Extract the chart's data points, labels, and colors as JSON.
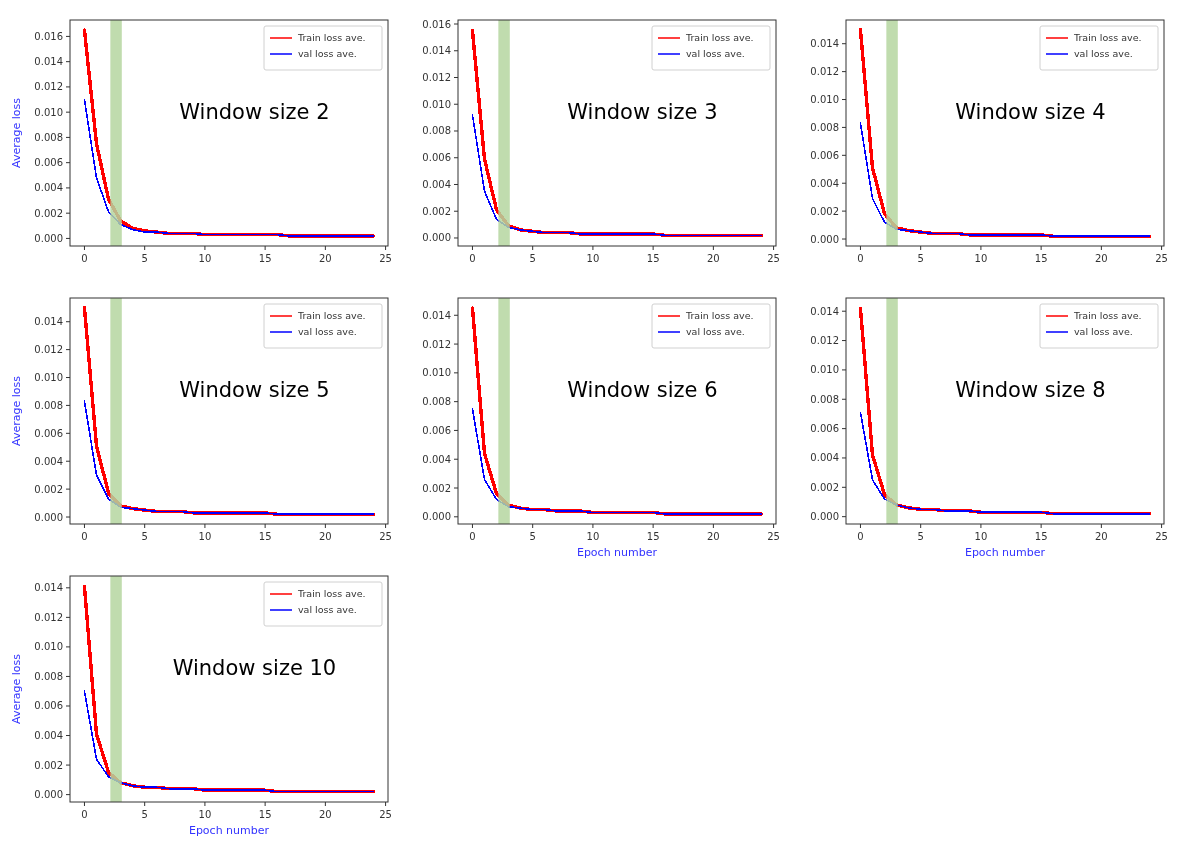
{
  "chart_data": [
    {
      "type": "line",
      "annotations": [
        "Window size 2"
      ],
      "ylabel": "Average loss",
      "x": [
        0,
        1,
        2,
        3,
        4,
        5,
        6,
        7,
        8,
        9,
        10,
        11,
        12,
        13,
        14,
        15,
        16,
        17,
        18,
        19,
        20,
        21,
        22,
        23,
        24
      ],
      "xlim": [
        -1.2,
        25.2
      ],
      "ylim": [
        -0.0006,
        0.0173
      ],
      "xticks": [
        0,
        5,
        10,
        15,
        20,
        25
      ],
      "yticks": [
        {
          "value": 0,
          "label": "0.000"
        },
        {
          "value": 0.002,
          "label": "0.002"
        },
        {
          "value": 0.004,
          "label": "0.004"
        },
        {
          "value": 0.006,
          "label": "0.006"
        },
        {
          "value": 0.008,
          "label": "0.008"
        },
        {
          "value": 0.01,
          "label": "0.010"
        },
        {
          "value": 0.012,
          "label": "0.012"
        },
        {
          "value": 0.014,
          "label": "0.014"
        },
        {
          "value": 0.016,
          "label": "0.016"
        }
      ],
      "bands": [
        {
          "axis": "x",
          "from": 2.15,
          "to": 3.1,
          "color": "#b5d6a0"
        }
      ],
      "legend": "top right",
      "series": [
        {
          "name": "Train loss ave.",
          "color": "#ff0000",
          "values": [
            0.0165,
            0.0075,
            0.0031,
            0.0014,
            0.0008,
            0.0006,
            0.0005,
            0.0004,
            0.0004,
            0.0004,
            0.0003,
            0.0003,
            0.0003,
            0.0003,
            0.0003,
            0.0003,
            0.0003,
            0.0002,
            0.0002,
            0.0002,
            0.0002,
            0.0002,
            0.0002,
            0.0002,
            0.0002
          ]
        },
        {
          "name": "val loss ave.",
          "color": "#0000ff",
          "values": [
            0.011,
            0.0048,
            0.0021,
            0.0011,
            0.0007,
            0.0005,
            0.0005,
            0.0004,
            0.0004,
            0.0004,
            0.0003,
            0.0003,
            0.0003,
            0.0003,
            0.0003,
            0.0003,
            0.0003,
            0.0002,
            0.0002,
            0.0002,
            0.0002,
            0.0002,
            0.0002,
            0.0002,
            0.0002
          ]
        }
      ]
    },
    {
      "type": "line",
      "annotations": [
        "Window size 3"
      ],
      "x": [
        0,
        1,
        2,
        3,
        4,
        5,
        6,
        7,
        8,
        9,
        10,
        11,
        12,
        13,
        14,
        15,
        16,
        17,
        18,
        19,
        20,
        21,
        22,
        23,
        24
      ],
      "xlim": [
        -1.2,
        25.2
      ],
      "ylim": [
        -0.0006,
        0.0163
      ],
      "xticks": [
        0,
        5,
        10,
        15,
        20,
        25
      ],
      "yticks": [
        {
          "value": 0,
          "label": "0.000"
        },
        {
          "value": 0.002,
          "label": "0.002"
        },
        {
          "value": 0.004,
          "label": "0.004"
        },
        {
          "value": 0.006,
          "label": "0.006"
        },
        {
          "value": 0.008,
          "label": "0.008"
        },
        {
          "value": 0.01,
          "label": "0.010"
        },
        {
          "value": 0.012,
          "label": "0.012"
        },
        {
          "value": 0.014,
          "label": "0.014"
        },
        {
          "value": 0.016,
          "label": "0.016"
        }
      ],
      "bands": [
        {
          "axis": "x",
          "from": 2.15,
          "to": 3.1,
          "color": "#b5d6a0"
        }
      ],
      "legend": "top right",
      "series": [
        {
          "name": "Train loss ave.",
          "color": "#ff0000",
          "values": [
            0.0155,
            0.0059,
            0.0021,
            0.0009,
            0.0006,
            0.0005,
            0.0004,
            0.0004,
            0.0004,
            0.0003,
            0.0003,
            0.0003,
            0.0003,
            0.0003,
            0.0003,
            0.0003,
            0.0002,
            0.0002,
            0.0002,
            0.0002,
            0.0002,
            0.0002,
            0.0002,
            0.0002,
            0.0002
          ]
        },
        {
          "name": "val loss ave.",
          "color": "#0000ff",
          "values": [
            0.0092,
            0.0035,
            0.0014,
            0.0008,
            0.0006,
            0.0005,
            0.0004,
            0.0004,
            0.0004,
            0.0003,
            0.0003,
            0.0003,
            0.0003,
            0.0003,
            0.0003,
            0.0003,
            0.0002,
            0.0002,
            0.0002,
            0.0002,
            0.0002,
            0.0002,
            0.0002,
            0.0002,
            0.0002
          ]
        }
      ]
    },
    {
      "type": "line",
      "annotations": [
        "Window size 4"
      ],
      "x": [
        0,
        1,
        2,
        3,
        4,
        5,
        6,
        7,
        8,
        9,
        10,
        11,
        12,
        13,
        14,
        15,
        16,
        17,
        18,
        19,
        20,
        21,
        22,
        23,
        24
      ],
      "xlim": [
        -1.2,
        25.2
      ],
      "ylim": [
        -0.0005,
        0.0157
      ],
      "xticks": [
        0,
        5,
        10,
        15,
        20,
        25
      ],
      "yticks": [
        {
          "value": 0,
          "label": "0.000"
        },
        {
          "value": 0.002,
          "label": "0.002"
        },
        {
          "value": 0.004,
          "label": "0.004"
        },
        {
          "value": 0.006,
          "label": "0.006"
        },
        {
          "value": 0.008,
          "label": "0.008"
        },
        {
          "value": 0.01,
          "label": "0.010"
        },
        {
          "value": 0.012,
          "label": "0.012"
        },
        {
          "value": 0.014,
          "label": "0.014"
        }
      ],
      "bands": [
        {
          "axis": "x",
          "from": 2.15,
          "to": 3.1,
          "color": "#b5d6a0"
        }
      ],
      "legend": "top right",
      "series": [
        {
          "name": "Train loss ave.",
          "color": "#ff0000",
          "values": [
            0.015,
            0.0051,
            0.0018,
            0.0008,
            0.0006,
            0.0005,
            0.0004,
            0.0004,
            0.0004,
            0.0003,
            0.0003,
            0.0003,
            0.0003,
            0.0003,
            0.0003,
            0.0003,
            0.0002,
            0.0002,
            0.0002,
            0.0002,
            0.0002,
            0.0002,
            0.0002,
            0.0002,
            0.0002
          ]
        },
        {
          "name": "val loss ave.",
          "color": "#0000ff",
          "values": [
            0.0083,
            0.0029,
            0.0012,
            0.0007,
            0.0006,
            0.0005,
            0.0004,
            0.0004,
            0.0004,
            0.0003,
            0.0003,
            0.0003,
            0.0003,
            0.0003,
            0.0003,
            0.0003,
            0.0002,
            0.0002,
            0.0002,
            0.0002,
            0.0002,
            0.0002,
            0.0002,
            0.0002,
            0.0002
          ]
        }
      ]
    },
    {
      "type": "line",
      "annotations": [
        "Window size 5"
      ],
      "ylabel": "Average loss",
      "x": [
        0,
        1,
        2,
        3,
        4,
        5,
        6,
        7,
        8,
        9,
        10,
        11,
        12,
        13,
        14,
        15,
        16,
        17,
        18,
        19,
        20,
        21,
        22,
        23,
        24
      ],
      "xlim": [
        -1.2,
        25.2
      ],
      "ylim": [
        -0.0005,
        0.0157
      ],
      "xticks": [
        0,
        5,
        10,
        15,
        20,
        25
      ],
      "yticks": [
        {
          "value": 0,
          "label": "0.000"
        },
        {
          "value": 0.002,
          "label": "0.002"
        },
        {
          "value": 0.004,
          "label": "0.004"
        },
        {
          "value": 0.006,
          "label": "0.006"
        },
        {
          "value": 0.008,
          "label": "0.008"
        },
        {
          "value": 0.01,
          "label": "0.010"
        },
        {
          "value": 0.012,
          "label": "0.012"
        },
        {
          "value": 0.014,
          "label": "0.014"
        }
      ],
      "bands": [
        {
          "axis": "x",
          "from": 2.15,
          "to": 3.1,
          "color": "#b5d6a0"
        }
      ],
      "legend": "top right",
      "series": [
        {
          "name": "Train loss ave.",
          "color": "#ff0000",
          "values": [
            0.015,
            0.0051,
            0.0017,
            0.0008,
            0.0006,
            0.0005,
            0.0004,
            0.0004,
            0.0004,
            0.0003,
            0.0003,
            0.0003,
            0.0003,
            0.0003,
            0.0003,
            0.0003,
            0.0002,
            0.0002,
            0.0002,
            0.0002,
            0.0002,
            0.0002,
            0.0002,
            0.0002,
            0.0002
          ]
        },
        {
          "name": "val loss ave.",
          "color": "#0000ff",
          "values": [
            0.0083,
            0.003,
            0.0013,
            0.0007,
            0.0006,
            0.0005,
            0.0004,
            0.0004,
            0.0004,
            0.0003,
            0.0003,
            0.0003,
            0.0003,
            0.0003,
            0.0003,
            0.0003,
            0.0002,
            0.0002,
            0.0002,
            0.0002,
            0.0002,
            0.0002,
            0.0002,
            0.0002,
            0.0002
          ]
        }
      ]
    },
    {
      "type": "line",
      "annotations": [
        "Window size 6"
      ],
      "xlabel": "Epoch number",
      "x": [
        0,
        1,
        2,
        3,
        4,
        5,
        6,
        7,
        8,
        9,
        10,
        11,
        12,
        13,
        14,
        15,
        16,
        17,
        18,
        19,
        20,
        21,
        22,
        23,
        24
      ],
      "xlim": [
        -1.2,
        25.2
      ],
      "ylim": [
        -0.0005,
        0.0152
      ],
      "xticks": [
        0,
        5,
        10,
        15,
        20,
        25
      ],
      "yticks": [
        {
          "value": 0,
          "label": "0.000"
        },
        {
          "value": 0.002,
          "label": "0.002"
        },
        {
          "value": 0.004,
          "label": "0.004"
        },
        {
          "value": 0.006,
          "label": "0.006"
        },
        {
          "value": 0.008,
          "label": "0.008"
        },
        {
          "value": 0.01,
          "label": "0.010"
        },
        {
          "value": 0.012,
          "label": "0.012"
        },
        {
          "value": 0.014,
          "label": "0.014"
        }
      ],
      "bands": [
        {
          "axis": "x",
          "from": 2.15,
          "to": 3.1,
          "color": "#b5d6a0"
        }
      ],
      "legend": "top right",
      "series": [
        {
          "name": "Train loss ave.",
          "color": "#ff0000",
          "values": [
            0.0145,
            0.0044,
            0.0016,
            0.0008,
            0.0006,
            0.0005,
            0.0005,
            0.0004,
            0.0004,
            0.0004,
            0.0003,
            0.0003,
            0.0003,
            0.0003,
            0.0003,
            0.0003,
            0.0002,
            0.0002,
            0.0002,
            0.0002,
            0.0002,
            0.0002,
            0.0002,
            0.0002,
            0.0002
          ]
        },
        {
          "name": "val loss ave.",
          "color": "#0000ff",
          "values": [
            0.0075,
            0.0026,
            0.0012,
            0.0007,
            0.0006,
            0.0005,
            0.0005,
            0.0004,
            0.0004,
            0.0004,
            0.0003,
            0.0003,
            0.0003,
            0.0003,
            0.0003,
            0.0003,
            0.0002,
            0.0002,
            0.0002,
            0.0002,
            0.0002,
            0.0002,
            0.0002,
            0.0002,
            0.0002
          ]
        }
      ]
    },
    {
      "type": "line",
      "annotations": [
        "Window size 8"
      ],
      "xlabel": "Epoch number",
      "x": [
        0,
        1,
        2,
        3,
        4,
        5,
        6,
        7,
        8,
        9,
        10,
        11,
        12,
        13,
        14,
        15,
        16,
        17,
        18,
        19,
        20,
        21,
        22,
        23,
        24
      ],
      "xlim": [
        -1.2,
        25.2
      ],
      "ylim": [
        -0.0005,
        0.0149
      ],
      "xticks": [
        0,
        5,
        10,
        15,
        20,
        25
      ],
      "yticks": [
        {
          "value": 0,
          "label": "0.000"
        },
        {
          "value": 0.002,
          "label": "0.002"
        },
        {
          "value": 0.004,
          "label": "0.004"
        },
        {
          "value": 0.006,
          "label": "0.006"
        },
        {
          "value": 0.008,
          "label": "0.008"
        },
        {
          "value": 0.01,
          "label": "0.010"
        },
        {
          "value": 0.012,
          "label": "0.012"
        },
        {
          "value": 0.014,
          "label": "0.014"
        }
      ],
      "bands": [
        {
          "axis": "x",
          "from": 2.15,
          "to": 3.1,
          "color": "#b5d6a0"
        }
      ],
      "legend": "top right",
      "series": [
        {
          "name": "Train loss ave.",
          "color": "#ff0000",
          "values": [
            0.0142,
            0.0042,
            0.0015,
            0.0008,
            0.0006,
            0.0005,
            0.0005,
            0.0004,
            0.0004,
            0.0004,
            0.0003,
            0.0003,
            0.0003,
            0.0003,
            0.0003,
            0.0003,
            0.0002,
            0.0002,
            0.0002,
            0.0002,
            0.0002,
            0.0002,
            0.0002,
            0.0002,
            0.0002
          ]
        },
        {
          "name": "val loss ave.",
          "color": "#0000ff",
          "values": [
            0.0071,
            0.0025,
            0.0012,
            0.0008,
            0.0006,
            0.0005,
            0.0005,
            0.0004,
            0.0004,
            0.0004,
            0.0003,
            0.0003,
            0.0003,
            0.0003,
            0.0003,
            0.0003,
            0.0002,
            0.0002,
            0.0002,
            0.0002,
            0.0002,
            0.0002,
            0.0002,
            0.0002,
            0.0002
          ]
        }
      ]
    },
    {
      "type": "line",
      "annotations": [
        "Window size 10"
      ],
      "xlabel": "Epoch number",
      "ylabel": "Average loss",
      "x": [
        0,
        1,
        2,
        3,
        4,
        5,
        6,
        7,
        8,
        9,
        10,
        11,
        12,
        13,
        14,
        15,
        16,
        17,
        18,
        19,
        20,
        21,
        22,
        23,
        24
      ],
      "xlim": [
        -1.2,
        25.2
      ],
      "ylim": [
        -0.0005,
        0.0148
      ],
      "xticks": [
        0,
        5,
        10,
        15,
        20,
        25
      ],
      "yticks": [
        {
          "value": 0,
          "label": "0.000"
        },
        {
          "value": 0.002,
          "label": "0.002"
        },
        {
          "value": 0.004,
          "label": "0.004"
        },
        {
          "value": 0.006,
          "label": "0.006"
        },
        {
          "value": 0.008,
          "label": "0.008"
        },
        {
          "value": 0.01,
          "label": "0.010"
        },
        {
          "value": 0.012,
          "label": "0.012"
        },
        {
          "value": 0.014,
          "label": "0.014"
        }
      ],
      "bands": [
        {
          "axis": "x",
          "from": 2.15,
          "to": 3.1,
          "color": "#b5d6a0"
        }
      ],
      "legend": "top right",
      "series": [
        {
          "name": "Train loss ave.",
          "color": "#ff0000",
          "values": [
            0.0141,
            0.0041,
            0.0015,
            0.0008,
            0.0006,
            0.0005,
            0.0005,
            0.0004,
            0.0004,
            0.0004,
            0.0003,
            0.0003,
            0.0003,
            0.0003,
            0.0003,
            0.0003,
            0.0002,
            0.0002,
            0.0002,
            0.0002,
            0.0002,
            0.0002,
            0.0002,
            0.0002,
            0.0002
          ]
        },
        {
          "name": "val loss ave.",
          "color": "#0000ff",
          "values": [
            0.007,
            0.0024,
            0.0012,
            0.0008,
            0.0006,
            0.0005,
            0.0005,
            0.0004,
            0.0004,
            0.0004,
            0.0003,
            0.0003,
            0.0003,
            0.0003,
            0.0003,
            0.0003,
            0.0002,
            0.0002,
            0.0002,
            0.0002,
            0.0002,
            0.0002,
            0.0002,
            0.0002,
            0.0002
          ]
        }
      ]
    }
  ]
}
